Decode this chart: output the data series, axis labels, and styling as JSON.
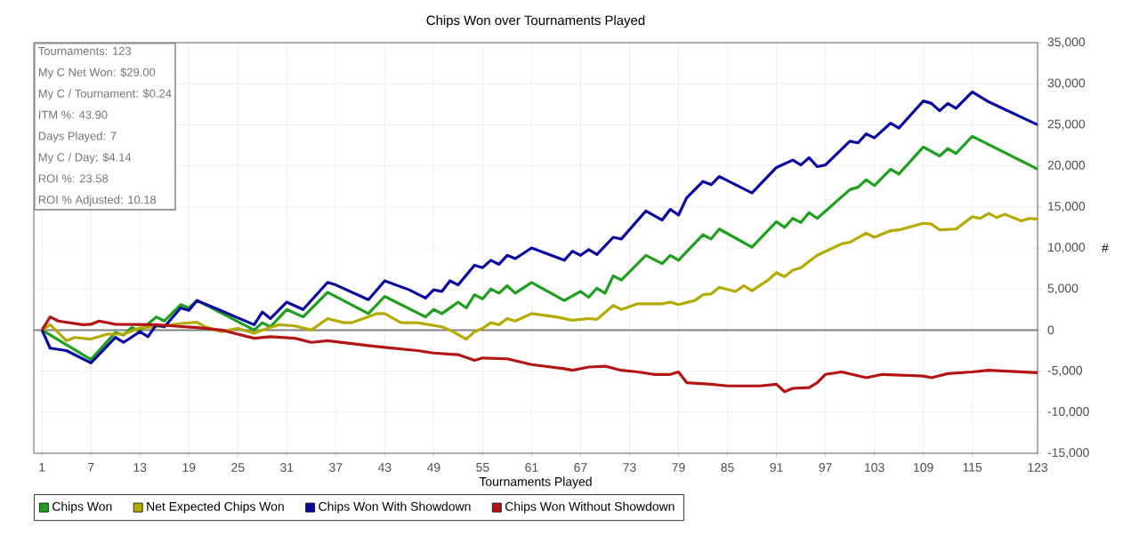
{
  "chart_data": {
    "type": "line",
    "title": "Chips Won over Tournaments Played",
    "xlabel": "Tournaments Played",
    "ylabel": "#",
    "annotations": [
      "Tournaments: 123",
      "My C Net Won: $29.00",
      "My C / Tournament: $0.24",
      "ITM %: 43.90",
      "Days Played: 7",
      "My C / Day: $4.14",
      "ROI %: 23.58",
      "ROI % Adjusted: 10.18"
    ],
    "xlim": [
      0,
      123
    ],
    "xticks": [
      1,
      7,
      13,
      19,
      25,
      31,
      37,
      43,
      49,
      55,
      61,
      67,
      73,
      79,
      85,
      91,
      97,
      103,
      109,
      115,
      123
    ],
    "ylim": [
      -15000,
      35000
    ],
    "yticks": [
      {
        "value": -15000,
        "label": "-15,000"
      },
      {
        "value": -10000,
        "label": "-10,000"
      },
      {
        "value": -5000,
        "label": "-5,000"
      },
      0,
      {
        "value": 5000,
        "label": "5,000"
      },
      {
        "value": 10000,
        "label": "10,000"
      },
      {
        "value": 15000,
        "label": "15,000"
      },
      {
        "value": 20000,
        "label": "20,000"
      },
      {
        "value": 25000,
        "label": "25,000"
      },
      {
        "value": 30000,
        "label": "30,000"
      },
      {
        "value": 35000,
        "label": "35,000"
      }
    ],
    "grid": true,
    "legend": "bottom",
    "marker": "none",
    "line_style": "solid",
    "ref_lines": [
      {
        "axis": "y",
        "value": 0,
        "color": "#808080"
      }
    ],
    "series": [
      {
        "name": "Chips Won",
        "color": "#1ea01e",
        "x": [
          1,
          7,
          10,
          11,
          12,
          13,
          15,
          16,
          18,
          19,
          20,
          27,
          28,
          29,
          31,
          33,
          36,
          41,
          43,
          48,
          49,
          50,
          52,
          53,
          54,
          55,
          56,
          57,
          58,
          59,
          61,
          65,
          67,
          68,
          69,
          70,
          71,
          72,
          75,
          77,
          78,
          79,
          82,
          83,
          84,
          88,
          91,
          92,
          93,
          94,
          95,
          96,
          100,
          101,
          102,
          103,
          105,
          106,
          109,
          111,
          112,
          113,
          115,
          123
        ],
        "values": [
          0,
          -3600,
          -300,
          -600,
          300,
          -100,
          1600,
          1100,
          3100,
          2700,
          3600,
          0,
          900,
          400,
          2500,
          1600,
          4600,
          2000,
          4100,
          1600,
          2500,
          2000,
          3400,
          2700,
          4300,
          3800,
          5000,
          4500,
          5400,
          4500,
          5800,
          3600,
          4700,
          4000,
          5100,
          4500,
          6600,
          6100,
          9100,
          8100,
          9100,
          8500,
          11600,
          11100,
          12300,
          10100,
          13200,
          12500,
          13600,
          13100,
          14300,
          13600,
          17100,
          17400,
          18300,
          17600,
          19600,
          19000,
          22300,
          21200,
          22100,
          21500,
          23600,
          19600
        ]
      },
      {
        "name": "Net Expected Chips Won",
        "color": "#b4aa00",
        "x": [
          1,
          2,
          4,
          5,
          7,
          9,
          11,
          13,
          15,
          18,
          20,
          21,
          23,
          25,
          27,
          28,
          30,
          32,
          34,
          36,
          38,
          39,
          42,
          43,
          45,
          47,
          50,
          51,
          53,
          54,
          55,
          56,
          57,
          58,
          59,
          61,
          64,
          66,
          67,
          68,
          69,
          71,
          72,
          74,
          77,
          78,
          79,
          81,
          82,
          83,
          84,
          86,
          87,
          88,
          90,
          91,
          92,
          93,
          94,
          96,
          99,
          100,
          102,
          103,
          105,
          106,
          109,
          110,
          111,
          113,
          115,
          116,
          117,
          118,
          119,
          121,
          122,
          123
        ],
        "values": [
          0,
          650,
          -1300,
          -900,
          -1100,
          -500,
          -500,
          250,
          400,
          800,
          950,
          400,
          -200,
          200,
          -400,
          0,
          650,
          500,
          0,
          1400,
          900,
          900,
          2000,
          2000,
          900,
          900,
          400,
          0,
          -1100,
          -200,
          200,
          900,
          650,
          1400,
          1100,
          2000,
          1600,
          1200,
          1300,
          1400,
          1300,
          3000,
          2500,
          3200,
          3200,
          3400,
          3100,
          3600,
          4300,
          4400,
          5200,
          4700,
          5400,
          4800,
          6100,
          7000,
          6500,
          7300,
          7600,
          9100,
          10500,
          10700,
          11800,
          11300,
          12100,
          12200,
          13000,
          12900,
          12200,
          12300,
          13800,
          13600,
          14200,
          13700,
          14100,
          13300,
          13600,
          13500
        ]
      },
      {
        "name": "Chips Won With Showdown",
        "color": "#0a0aa0",
        "x": [
          1,
          2,
          4,
          7,
          10,
          11,
          13,
          14,
          15,
          16,
          18,
          19,
          20,
          27,
          28,
          29,
          31,
          33,
          36,
          37,
          41,
          43,
          46,
          48,
          49,
          50,
          51,
          52,
          54,
          55,
          56,
          57,
          58,
          59,
          61,
          65,
          66,
          67,
          68,
          69,
          71,
          72,
          75,
          77,
          78,
          79,
          80,
          82,
          83,
          84,
          88,
          91,
          93,
          94,
          95,
          96,
          97,
          100,
          101,
          102,
          103,
          105,
          106,
          109,
          110,
          111,
          112,
          113,
          115,
          117,
          123
        ],
        "values": [
          0,
          -2200,
          -2500,
          -4000,
          -900,
          -1500,
          -200,
          -800,
          650,
          400,
          2700,
          2400,
          3600,
          650,
          2200,
          1400,
          3400,
          2500,
          5800,
          5500,
          3700,
          6000,
          4900,
          3900,
          4900,
          4700,
          6000,
          5500,
          7900,
          7600,
          8500,
          8000,
          9100,
          8700,
          10000,
          8500,
          9600,
          9100,
          9800,
          9200,
          11300,
          11100,
          14500,
          13400,
          14700,
          14000,
          16100,
          18100,
          17700,
          18700,
          16700,
          19800,
          20700,
          20100,
          21000,
          19900,
          20100,
          23000,
          22800,
          23900,
          23400,
          25200,
          24600,
          27900,
          27600,
          26700,
          27600,
          27000,
          29000,
          27800,
          25000
        ]
      },
      {
        "name": "Chips Won Without Showdown",
        "color": "#b41414",
        "x": [
          1,
          2,
          3,
          6,
          7,
          8,
          10,
          15,
          17,
          20,
          23,
          27,
          29,
          32,
          34,
          36,
          41,
          43,
          47,
          49,
          52,
          54,
          55,
          58,
          61,
          65,
          66,
          68,
          70,
          72,
          74,
          76,
          78,
          79,
          80,
          83,
          85,
          89,
          91,
          92,
          93,
          95,
          96,
          97,
          99,
          102,
          104,
          109,
          110,
          112,
          115,
          117,
          123
        ],
        "values": [
          0,
          1600,
          1100,
          650,
          700,
          1100,
          700,
          650,
          500,
          300,
          0,
          -1000,
          -800,
          -1000,
          -1500,
          -1300,
          -1900,
          -2100,
          -2500,
          -2800,
          -3000,
          -3700,
          -3400,
          -3500,
          -4200,
          -4700,
          -4900,
          -4500,
          -4400,
          -4900,
          -5100,
          -5400,
          -5400,
          -5100,
          -6400,
          -6600,
          -6800,
          -6800,
          -6600,
          -7500,
          -7100,
          -7000,
          -6400,
          -5400,
          -5100,
          -5800,
          -5400,
          -5600,
          -5800,
          -5300,
          -5100,
          -4900,
          -5200
        ]
      }
    ]
  }
}
